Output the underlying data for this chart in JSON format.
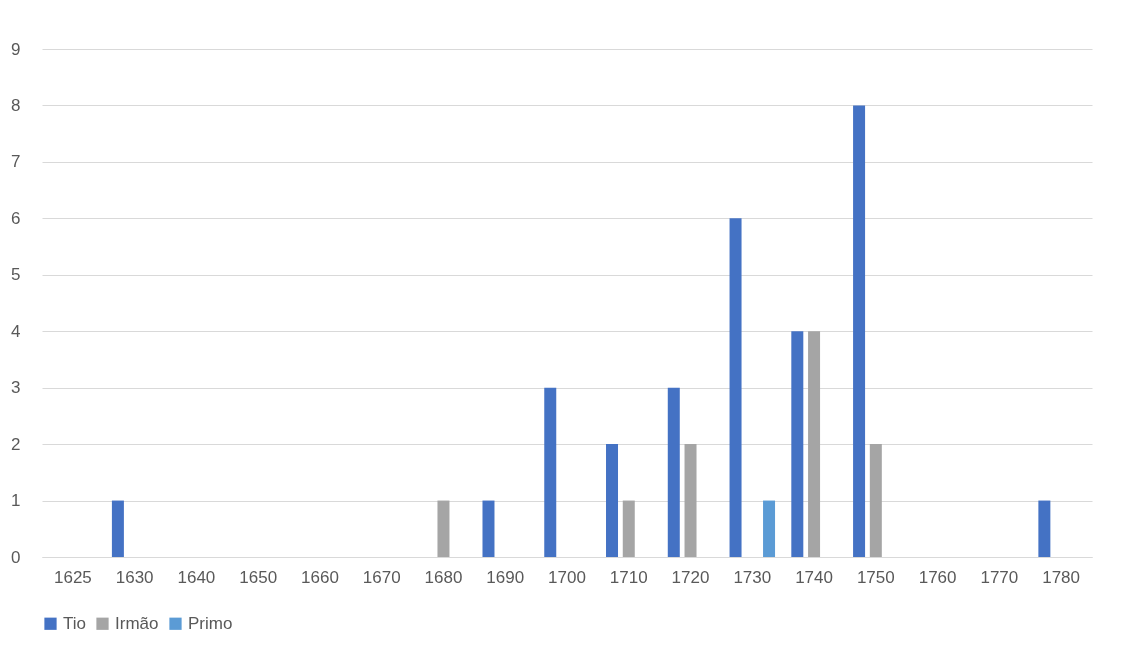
{
  "chart_data": {
    "type": "bar",
    "categories": [
      "1625",
      "1630",
      "1640",
      "1650",
      "1660",
      "1670",
      "1680",
      "1690",
      "1700",
      "1710",
      "1720",
      "1730",
      "1740",
      "1750",
      "1760",
      "1770",
      "1780"
    ],
    "series": [
      {
        "name": "Tio",
        "color": "#4472c4",
        "values": [
          0,
          1,
          0,
          0,
          0,
          0,
          0,
          1,
          3,
          2,
          3,
          6,
          4,
          8,
          0,
          0,
          1
        ]
      },
      {
        "name": "Irmão",
        "color": "#a5a5a5",
        "values": [
          0,
          0,
          0,
          0,
          0,
          0,
          1,
          0,
          0,
          1,
          2,
          0,
          4,
          2,
          0,
          0,
          0
        ]
      },
      {
        "name": "Primo",
        "color": "#5b9bd5",
        "values": [
          0,
          0,
          0,
          0,
          0,
          0,
          0,
          0,
          0,
          0,
          0,
          1,
          0,
          0,
          0,
          0,
          0
        ]
      }
    ],
    "ylim": [
      0,
      9
    ],
    "yticks": [
      0,
      1,
      2,
      3,
      4,
      5,
      6,
      7,
      8,
      9
    ],
    "grid": "y",
    "legend": "bottom"
  }
}
